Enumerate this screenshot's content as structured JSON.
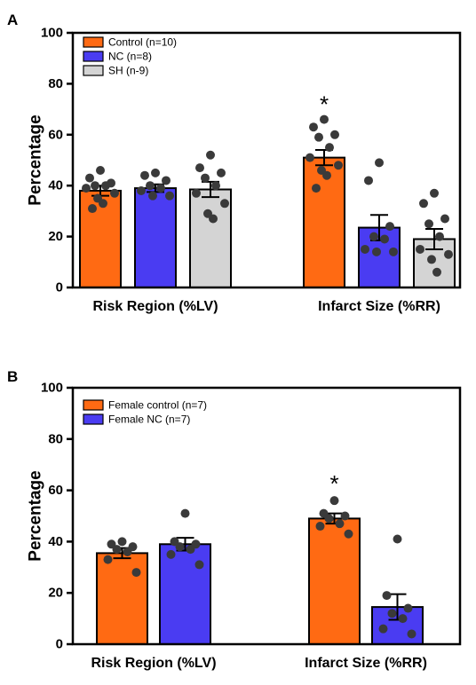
{
  "colors": {
    "control": "#ff6a13",
    "nc": "#4a3cf2",
    "sh": "#d4d4d4",
    "dot": "#3a3a3a"
  },
  "chart_data": [
    {
      "panel": "A",
      "type": "bar",
      "ylabel": "Percentage",
      "ylim": [
        0,
        100
      ],
      "yticks": [
        0,
        20,
        40,
        60,
        80,
        100
      ],
      "legend_position": "top-left",
      "categories": [
        "Risk Region (%LV)",
        "Infarct Size (%RR)"
      ],
      "series": [
        {
          "name": "Control (n=10)",
          "color_key": "control",
          "values": [
            38,
            51
          ],
          "sem": [
            2,
            3
          ],
          "points": [
            [
              46,
              43,
              41,
              40,
              40,
              39,
              37,
              35,
              33,
              31
            ],
            [
              66,
              63,
              60,
              59,
              55,
              51,
              48,
              46,
              44,
              39
            ]
          ]
        },
        {
          "name": "NC (n=8)",
          "color_key": "nc",
          "values": [
            39,
            23.5
          ],
          "sem": [
            1.5,
            5
          ],
          "points": [
            [
              45,
              44,
              42,
              40,
              39,
              38,
              36,
              36
            ],
            [
              49,
              42,
              24,
              20,
              19,
              15,
              14,
              14
            ]
          ]
        },
        {
          "name": "SH (n-9)",
          "color_key": "sh",
          "values": [
            38.5,
            19
          ],
          "sem": [
            3,
            4
          ],
          "points": [
            [
              52,
              47,
              45,
              43,
              40,
              37,
              33,
              29,
              27
            ],
            [
              37,
              33,
              27,
              25,
              20,
              15,
              13,
              11,
              6
            ]
          ]
        }
      ],
      "annotations": [
        {
          "text": "*",
          "category": 1,
          "series": 0
        }
      ]
    },
    {
      "panel": "B",
      "type": "bar",
      "ylabel": "Percentage",
      "ylim": [
        0,
        100
      ],
      "yticks": [
        0,
        20,
        40,
        60,
        80,
        100
      ],
      "legend_position": "top-left",
      "categories": [
        "Risk Region (%LV)",
        "Infarct Size (%RR)"
      ],
      "series": [
        {
          "name": "Female control (n=7)",
          "color_key": "control",
          "values": [
            35.5,
            49
          ],
          "sem": [
            2,
            2
          ],
          "points": [
            [
              40,
              39,
              38,
              37,
              36,
              33,
              28
            ],
            [
              56,
              51,
              50,
              49,
              47,
              46,
              43
            ]
          ]
        },
        {
          "name": "Female NC (n=7)",
          "color_key": "nc",
          "values": [
            39,
            14.5
          ],
          "sem": [
            2.5,
            5
          ],
          "points": [
            [
              51,
              40,
              39,
              38,
              37,
              35,
              31
            ],
            [
              41,
              19,
              14,
              12,
              10,
              6,
              4
            ]
          ]
        }
      ],
      "annotations": [
        {
          "text": "*",
          "category": 1,
          "series": 0
        }
      ]
    }
  ]
}
